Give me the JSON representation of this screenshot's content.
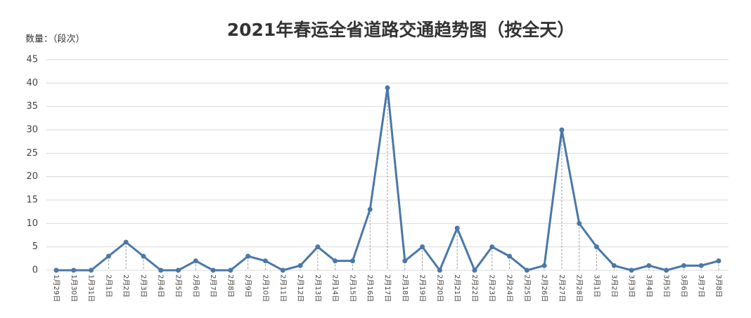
{
  "chart_data": {
    "type": "line",
    "title": "2021年春运全省道路交通趋势图（按全天）",
    "y_label": "数量：（段次）",
    "categories": [
      "1月29日",
      "1月30日",
      "1月31日",
      "2月1日",
      "2月2日",
      "2月3日",
      "2月4日",
      "2月5日",
      "2月6日",
      "2月7日",
      "2月8日",
      "2月9日",
      "2月10日",
      "2月11日",
      "2月12日",
      "2月13日",
      "2月14日",
      "2月15日",
      "2月16日",
      "2月17日",
      "2月18日",
      "2月19日",
      "2月20日",
      "2月21日",
      "2月22日",
      "2月23日",
      "2月24日",
      "2月25日",
      "2月26日",
      "2月27日",
      "2月28日",
      "3月1日",
      "3月2日",
      "3月3日",
      "3月4日",
      "3月5日",
      "3月6日",
      "3月7日",
      "3月8日"
    ],
    "values": [
      0,
      0,
      0,
      3,
      6,
      3,
      0,
      0,
      2,
      0,
      0,
      3,
      2,
      0,
      1,
      5,
      2,
      2,
      13,
      39,
      2,
      5,
      0,
      9,
      0,
      5,
      3,
      0,
      1,
      30,
      10,
      5,
      1,
      0,
      1,
      0,
      1,
      1,
      2
    ],
    "color": "#4a78a8",
    "ylim": [
      0,
      45
    ],
    "yticks": [
      0,
      5,
      10,
      15,
      20,
      25,
      30,
      35,
      40,
      45
    ],
    "grid": true,
    "drop_lines": true
  }
}
